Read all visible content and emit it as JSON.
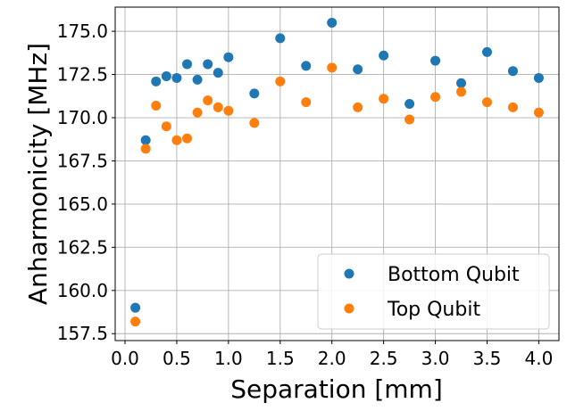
{
  "chart_data": {
    "type": "scatter",
    "title": "",
    "xlabel": "Separation [mm]",
    "ylabel": "Anharmonicity [MHz]",
    "xlim": [
      -0.095,
      4.195
    ],
    "ylim": [
      157.1,
      176.4
    ],
    "x_ticks": [
      0.0,
      0.5,
      1.0,
      1.5,
      2.0,
      2.5,
      3.0,
      3.5,
      4.0
    ],
    "x_tick_labels": [
      "0.0",
      "0.5",
      "1.0",
      "1.5",
      "2.0",
      "2.5",
      "3.0",
      "3.5",
      "4.0"
    ],
    "y_ticks": [
      157.5,
      160.0,
      162.5,
      165.0,
      167.5,
      170.0,
      172.5,
      175.0
    ],
    "y_tick_labels": [
      "157.5",
      "160.0",
      "162.5",
      "165.0",
      "167.5",
      "170.0",
      "172.5",
      "175.0"
    ],
    "grid": true,
    "legend_position": "bottom-right",
    "series": [
      {
        "name": "Bottom Qubit",
        "color": "#1f77b4",
        "x": [
          0.1,
          0.2,
          0.3,
          0.4,
          0.5,
          0.6,
          0.7,
          0.8,
          0.9,
          1.0,
          1.25,
          1.5,
          1.75,
          2.0,
          2.25,
          2.5,
          2.75,
          3.0,
          3.25,
          3.5,
          3.75,
          4.0
        ],
        "y": [
          159.0,
          168.7,
          172.1,
          172.4,
          172.3,
          173.1,
          172.2,
          173.1,
          172.6,
          173.5,
          171.4,
          174.6,
          173.0,
          175.5,
          172.8,
          173.6,
          170.8,
          173.3,
          172.0,
          173.8,
          172.7,
          172.3
        ]
      },
      {
        "name": "Top Qubit",
        "color": "#ff7f0e",
        "x": [
          0.1,
          0.2,
          0.3,
          0.4,
          0.5,
          0.6,
          0.7,
          0.8,
          0.9,
          1.0,
          1.25,
          1.5,
          1.75,
          2.0,
          2.25,
          2.5,
          2.75,
          3.0,
          3.25,
          3.5,
          3.75,
          4.0
        ],
        "y": [
          158.2,
          168.2,
          170.7,
          169.5,
          168.7,
          168.8,
          170.3,
          171.0,
          170.6,
          170.4,
          169.7,
          172.1,
          170.9,
          172.9,
          170.6,
          171.1,
          169.9,
          171.2,
          171.5,
          170.9,
          170.6,
          170.3
        ]
      }
    ]
  }
}
